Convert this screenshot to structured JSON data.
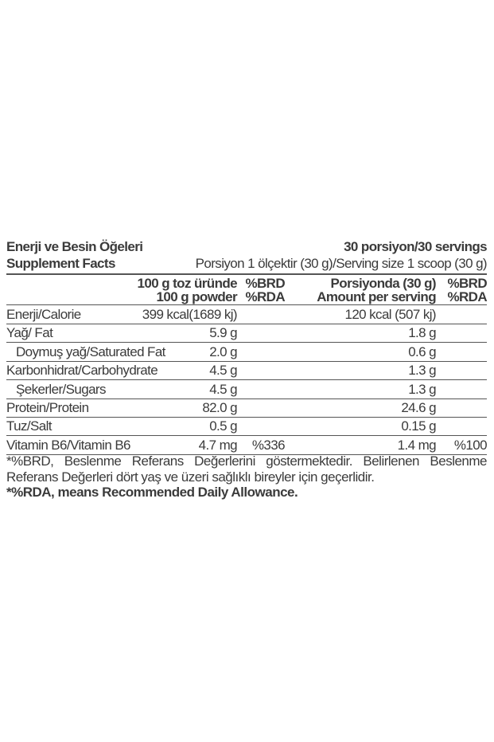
{
  "header": {
    "title_tr": "Enerji ve Besin Öğeleri",
    "servings_tr": "30 porsiyon/",
    "servings_en": "30 servings",
    "title_en": "Supplement Facts",
    "serving_size": "Porsiyon 1 ölçektir (30 g)/Serving size 1 scoop (30 g)"
  },
  "columns": {
    "per100_tr": "100 g toz üründe",
    "per100_en": "100 g powder",
    "brd1_tr": "%BRD",
    "brd1_en": "%RDA",
    "serving_tr": "Porsiyonda (30 g)",
    "serving_en": "Amount per serving",
    "brd2_tr": "%BRD",
    "brd2_en": "%RDA"
  },
  "rows": [
    {
      "label": "Enerji/Calorie",
      "per100": "399 kcal(1689 kj)",
      "rda100": "",
      "serving": "120 kcal (507 kj)",
      "rdaServing": "",
      "indent": false
    },
    {
      "label": "Yağ/ Fat",
      "per100": "5.9 g",
      "rda100": "",
      "serving": "1.8 g",
      "rdaServing": "",
      "indent": false
    },
    {
      "label": "Doymuş yağ/Saturated Fat",
      "per100": "2.0 g",
      "rda100": "",
      "serving": "0.6 g",
      "rdaServing": "",
      "indent": true
    },
    {
      "label": "Karbonhidrat/Carbohydrate",
      "per100": "4.5 g",
      "rda100": "",
      "serving": "1.3 g",
      "rdaServing": "",
      "indent": false
    },
    {
      "label": "Şekerler/Sugars",
      "per100": "4.5 g",
      "rda100": "",
      "serving": "1.3 g",
      "rdaServing": "",
      "indent": true
    },
    {
      "label": "Protein/Protein",
      "per100": "82.0 g",
      "rda100": "",
      "serving": "24.6 g",
      "rdaServing": "",
      "indent": false
    },
    {
      "label": "Tuz/Salt",
      "per100": "0.5 g",
      "rda100": "",
      "serving": "0.15 g",
      "rdaServing": "",
      "indent": false
    },
    {
      "label": "Vitamin B6/Vitamin B6",
      "per100": "4.7 mg",
      "rda100": "%336",
      "serving": "1.4 mg",
      "rdaServing": "%100",
      "indent": false
    }
  ],
  "footnotes": {
    "brd": "*%BRD, Beslenme Referans Değerlerini göstermektedir. Belirlenen Beslenme Referans Değerleri dört yaş ve üzeri sağlıklı bireyler için geçerlidir.",
    "rda": "*%RDA, means Recommended Daily Allowance."
  }
}
